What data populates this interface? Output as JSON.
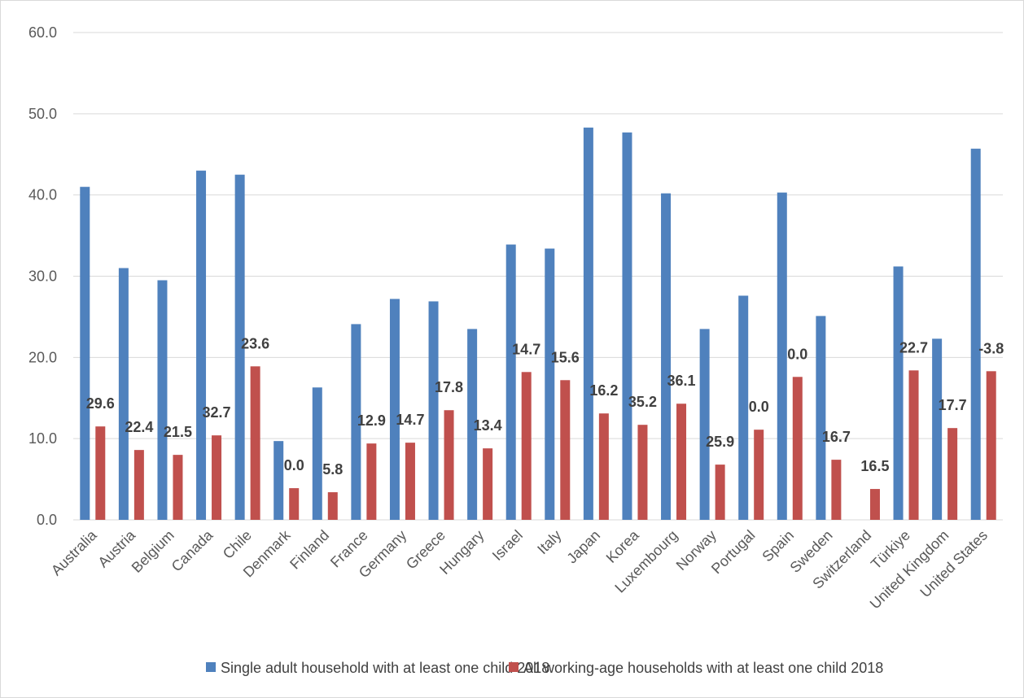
{
  "chart_data": {
    "type": "bar",
    "ylim": [
      0,
      60
    ],
    "yticks": [
      "0.0",
      "10.0",
      "20.0",
      "30.0",
      "40.0",
      "50.0",
      "60.0"
    ],
    "grid": true,
    "legend_position": "bottom",
    "categories": [
      "Australia",
      "Austria",
      "Belgium",
      "Canada",
      "Chile",
      "Denmark",
      "Finland",
      "France",
      "Germany",
      "Greece",
      "Hungary",
      "Israel",
      "Italy",
      "Japan",
      "Korea",
      "Luxembourg",
      "Norway",
      "Portugal",
      "Spain",
      "Sweden",
      "Switzerland",
      "Türkiye",
      "United Kingdom",
      "United States"
    ],
    "series": [
      {
        "name": "Single adult household with at least one child 2018",
        "color": "#4f81bd",
        "values": [
          41.0,
          31.0,
          29.5,
          43.0,
          42.5,
          9.7,
          16.3,
          24.1,
          27.2,
          26.9,
          23.5,
          33.9,
          33.4,
          48.3,
          47.7,
          40.2,
          23.5,
          27.6,
          40.3,
          25.1,
          null,
          31.2,
          22.3,
          45.7
        ]
      },
      {
        "name": "All working-age households with at least one child 2018",
        "color": "#c0504d",
        "values": [
          11.5,
          8.6,
          8.0,
          10.4,
          18.9,
          3.9,
          3.4,
          9.4,
          9.5,
          13.5,
          8.8,
          18.2,
          17.2,
          13.1,
          11.7,
          14.3,
          6.8,
          11.1,
          17.6,
          7.4,
          3.8,
          18.4,
          11.3,
          18.3
        ]
      }
    ],
    "data_labels": [
      "29.6",
      "22.4",
      "21.5",
      "32.7",
      "23.6",
      "0.0",
      "5.8",
      "12.9",
      "14.7",
      "17.8",
      "13.4",
      "14.7",
      "15.6",
      "16.2",
      "35.2",
      "36.1",
      "25.9",
      "0.0",
      "0.0",
      "16.7",
      "16.5",
      "22.7",
      "17.7",
      "-3.8"
    ]
  }
}
